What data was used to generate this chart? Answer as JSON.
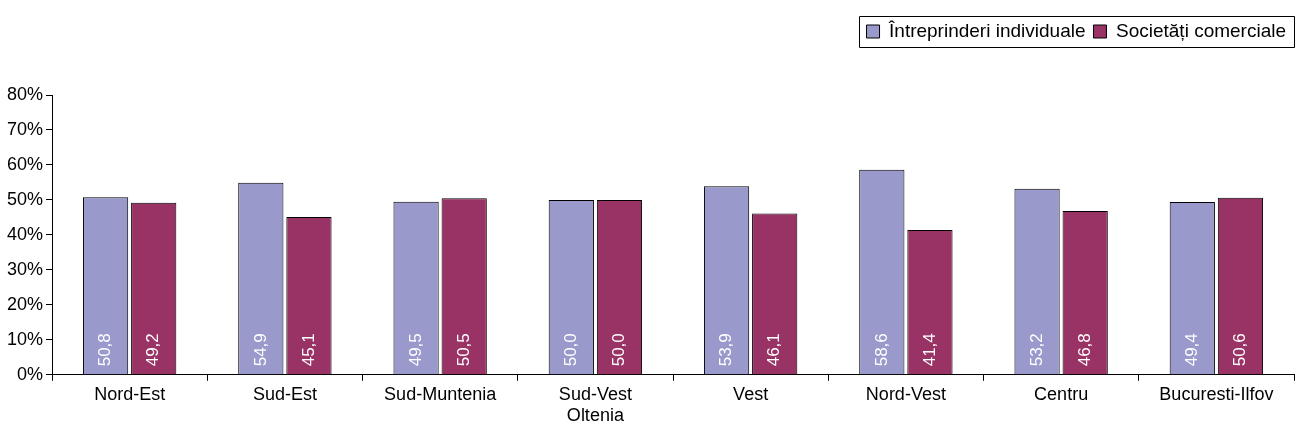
{
  "chart_data": {
    "type": "bar",
    "categories": [
      "Nord-Est",
      "Sud-Est",
      "Sud-Muntenia",
      "Sud-Vest Oltenia",
      "Vest",
      "Nord-Vest",
      "Centru",
      "Bucuresti-Ilfov"
    ],
    "series": [
      {
        "name": "Întreprinderi individuale",
        "color": "#9999cc",
        "values": [
          50.8,
          54.9,
          49.5,
          50.0,
          53.9,
          58.6,
          53.2,
          49.4
        ],
        "value_labels": [
          "50,8",
          "54,9",
          "49,5",
          "50,0",
          "53,9",
          "58,6",
          "53,2",
          "49,4"
        ]
      },
      {
        "name": "Societăți comerciale",
        "color": "#993366",
        "values": [
          49.2,
          45.1,
          50.5,
          50.0,
          46.1,
          41.4,
          46.8,
          50.6
        ],
        "value_labels": [
          "49,2",
          "45,1",
          "50,5",
          "50,0",
          "46,1",
          "41,4",
          "46,8",
          "50,6"
        ]
      }
    ],
    "ylim": [
      0,
      80
    ],
    "yticks": [
      {
        "value": 0,
        "label": "0%"
      },
      {
        "value": 10,
        "label": "10%"
      },
      {
        "value": 20,
        "label": "20%"
      },
      {
        "value": 30,
        "label": "30%"
      },
      {
        "value": 40,
        "label": "40%"
      },
      {
        "value": 50,
        "label": "50%"
      },
      {
        "value": 60,
        "label": "60%"
      },
      {
        "value": 70,
        "label": "70%"
      },
      {
        "value": 80,
        "label": "80%"
      }
    ],
    "grid": false,
    "legend": "top right"
  }
}
